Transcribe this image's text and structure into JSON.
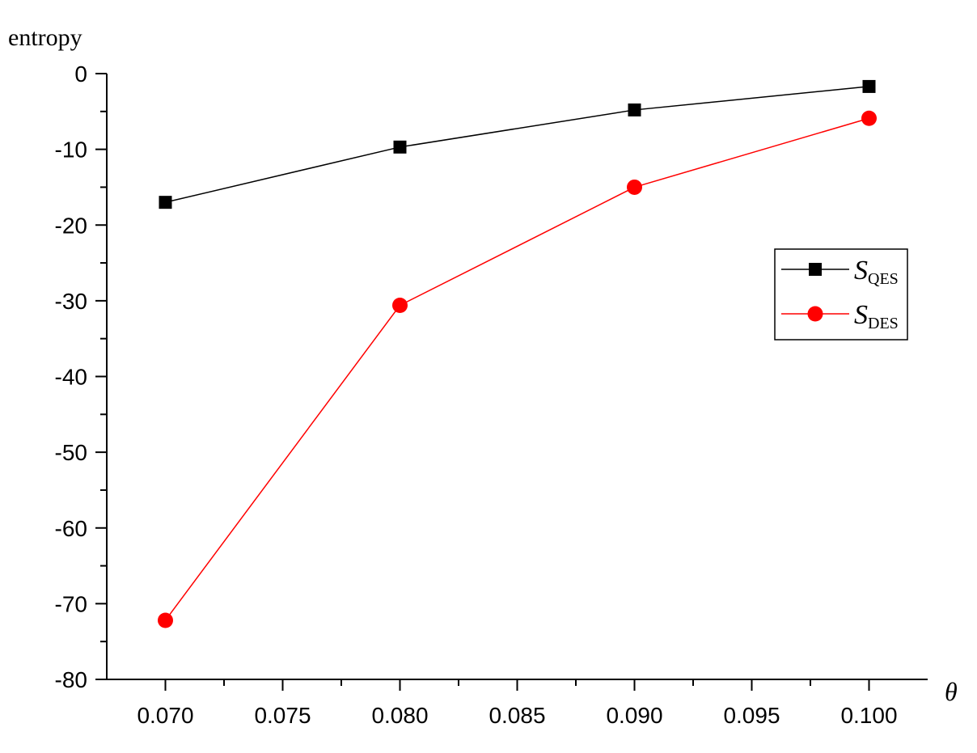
{
  "chart_data": {
    "type": "line",
    "y_label": "entropy",
    "x_label": "θ",
    "x": [
      0.07,
      0.08,
      0.09,
      0.1
    ],
    "series": [
      {
        "name": "S",
        "name_subscript": "QES",
        "color": "#000000",
        "marker": "square",
        "values": [
          -17.0,
          -9.7,
          -4.8,
          -1.7
        ]
      },
      {
        "name": "S",
        "name_subscript": "DES",
        "color": "#ff0000",
        "marker": "circle",
        "values": [
          -72.2,
          -30.6,
          -15.0,
          -5.9
        ]
      }
    ],
    "xlim": [
      0.0675,
      0.1025
    ],
    "xticks": [
      {
        "value": 0.07,
        "label": "0.070"
      },
      {
        "value": 0.075,
        "label": "0.075"
      },
      {
        "value": 0.08,
        "label": "0.080"
      },
      {
        "value": 0.085,
        "label": "0.085"
      },
      {
        "value": 0.09,
        "label": "0.090"
      },
      {
        "value": 0.095,
        "label": "0.095"
      },
      {
        "value": 0.1,
        "label": "0.100"
      }
    ],
    "xminorticks": [
      0.0725,
      0.0775,
      0.0825,
      0.0875,
      0.0925,
      0.0975
    ],
    "ylim": [
      -80,
      0
    ],
    "yticks": [
      -80,
      -70,
      -60,
      -50,
      -40,
      -30,
      -20,
      -10,
      0
    ],
    "yminorticks": [
      -75,
      -65,
      -55,
      -45,
      -35,
      -25,
      -15,
      -5
    ],
    "legend": "upper right",
    "grid": false
  }
}
